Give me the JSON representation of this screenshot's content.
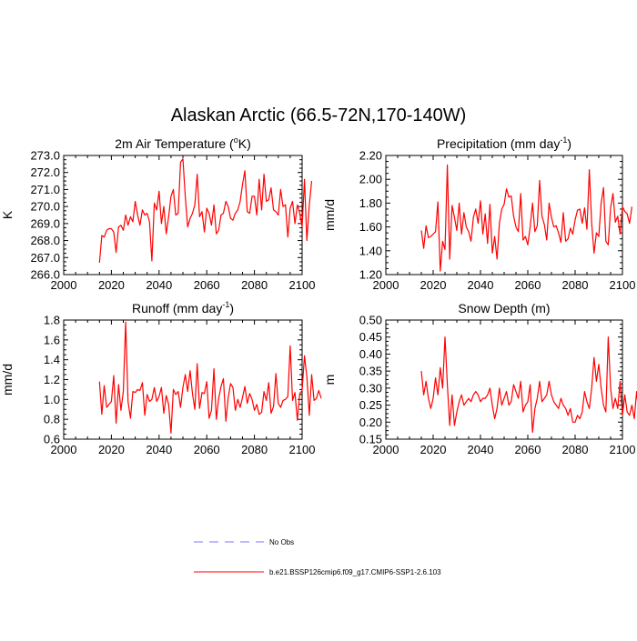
{
  "figure": {
    "title": "Alaskan Arctic (66.5-72N,170-140W)"
  },
  "legend": {
    "entries": [
      {
        "label": "No Obs",
        "color": "#7777ff",
        "style": "dashed"
      },
      {
        "label": "b.e21.BSSP126cmip6.f09_g17.CMIP6-SSP1-2.6.103",
        "color": "#ff0000",
        "style": "solid"
      }
    ]
  },
  "chart_data": [
    {
      "type": "line",
      "title": "2m Air Temperature (",
      "title_sup": "o",
      "title_tail": "K)",
      "ylabel": "K",
      "xlim": [
        2000,
        2100
      ],
      "ylim": [
        266,
        273
      ],
      "xticks": [
        2000,
        2020,
        2040,
        2060,
        2080,
        2100
      ],
      "yticks": [
        "266.0",
        "267.0",
        "268.0",
        "269.0",
        "270.0",
        "271.0",
        "272.0",
        "273.0"
      ],
      "series": [
        {
          "name": "b.e21.BSSP126cmip6.f09_g17.CMIP6-SSP1-2.6.103",
          "color": "#ff0000",
          "x_start": 2015,
          "values": [
            266.7,
            268.3,
            268.2,
            268.6,
            268.7,
            268.7,
            268.5,
            267.3,
            268.8,
            268.9,
            268.6,
            269.5,
            268.9,
            269.4,
            269.1,
            270.3,
            269.5,
            268.9,
            269.8,
            269.5,
            269.6,
            269.1,
            266.8,
            270.2,
            269.8,
            270.9,
            269.0,
            270.0,
            268.4,
            269.4,
            270.6,
            271.0,
            269.5,
            269.6,
            272.6,
            272.8,
            270.6,
            268.8,
            269.3,
            269.6,
            270.1,
            271.9,
            269.4,
            269.7,
            268.5,
            269.9,
            269.6,
            268.9,
            270.1,
            268.4,
            268.6,
            269.5,
            269.6,
            270.3,
            270.0,
            269.3,
            269.2,
            269.6,
            269.8,
            270.3,
            271.3,
            272.1,
            269.7,
            269.6,
            270.6,
            270.6,
            269.5,
            271.6,
            269.8,
            271.9,
            270.3,
            270.4,
            271.1,
            269.8,
            269.7,
            269.5,
            271.0,
            270.0,
            270.1,
            268.2,
            269.9,
            270.3,
            269.0,
            270.1,
            269.6,
            268.8,
            271.6,
            268.0,
            270.1,
            271.5
          ]
        }
      ]
    },
    {
      "type": "line",
      "title": "Precipitation (mm day",
      "title_sup": "-1",
      "title_tail": ")",
      "ylabel": "mm/d",
      "xlim": [
        2000,
        2100
      ],
      "ylim": [
        1.2,
        2.2
      ],
      "xticks": [
        2000,
        2020,
        2040,
        2060,
        2080,
        2100
      ],
      "yticks": [
        "1.20",
        "1.40",
        "1.60",
        "1.80",
        "2.00",
        "2.20"
      ],
      "series": [
        {
          "name": "b.e21.BSSP126cmip6.f09_g17.CMIP6-SSP1-2.6.103",
          "color": "#ff0000",
          "x_start": 2015,
          "values": [
            1.57,
            1.42,
            1.61,
            1.51,
            1.52,
            1.54,
            1.56,
            1.81,
            1.23,
            1.48,
            1.41,
            2.12,
            1.33,
            1.78,
            1.68,
            1.57,
            1.8,
            1.54,
            1.72,
            1.6,
            1.56,
            1.48,
            1.68,
            1.75,
            1.63,
            1.82,
            1.54,
            1.71,
            1.46,
            1.79,
            1.38,
            1.52,
            1.33,
            1.63,
            1.75,
            1.79,
            1.92,
            1.85,
            1.86,
            1.69,
            1.6,
            1.56,
            1.88,
            1.49,
            1.52,
            1.45,
            1.6,
            1.8,
            1.56,
            1.61,
            1.99,
            1.69,
            1.62,
            1.49,
            1.8,
            1.68,
            1.6,
            1.61,
            1.55,
            1.47,
            1.72,
            1.48,
            1.5,
            1.59,
            1.54,
            1.66,
            1.74,
            1.75,
            1.63,
            1.76,
            1.58,
            2.08,
            1.63,
            1.38,
            1.55,
            1.52,
            1.8,
            1.93,
            1.48,
            1.45,
            1.76,
            1.88,
            1.64,
            1.69,
            1.54,
            1.77,
            1.73,
            1.71,
            1.63,
            1.77
          ]
        }
      ]
    },
    {
      "type": "line",
      "title": "Runoff (mm day",
      "title_sup": "-1",
      "title_tail": ")",
      "ylabel": "mm/d",
      "xlim": [
        2000,
        2100
      ],
      "ylim": [
        0.6,
        1.8
      ],
      "xticks": [
        2000,
        2020,
        2040,
        2060,
        2080,
        2100
      ],
      "yticks": [
        "0.6",
        "0.8",
        "1.0",
        "1.2",
        "1.4",
        "1.6",
        "1.8"
      ],
      "series": [
        {
          "name": "b.e21.BSSP126cmip6.f09_g17.CMIP6-SSP1-2.6.103",
          "color": "#ff0000",
          "x_start": 2015,
          "values": [
            1.18,
            0.85,
            1.14,
            0.92,
            0.95,
            0.98,
            1.24,
            0.76,
            1.15,
            0.89,
            1.08,
            1.78,
            0.98,
            0.81,
            1.08,
            1.07,
            1.1,
            1.09,
            1.17,
            0.84,
            1.05,
            0.98,
            1.0,
            1.12,
            0.98,
            1.03,
            1.12,
            0.86,
            1.04,
            0.95,
            0.66,
            1.1,
            1.05,
            1.08,
            0.92,
            1.12,
            1.25,
            1.08,
            1.29,
            1.06,
            0.9,
            1.36,
            0.91,
            1.07,
            1.06,
            1.18,
            0.81,
            0.89,
            1.31,
            0.8,
            1.01,
            1.13,
            1.21,
            0.78,
            1.02,
            1.16,
            1.12,
            0.89,
            1.0,
            0.92,
            1.02,
            1.13,
            0.96,
            1.06,
            1.0,
            0.89,
            0.95,
            0.85,
            0.87,
            1.08,
            0.99,
            1.17,
            0.86,
            0.93,
            1.26,
            0.96,
            0.92,
            0.99,
            1.0,
            1.03,
            1.54,
            0.99,
            1.07,
            0.79,
            1.06,
            1.09,
            1.44,
            1.23,
            0.84,
            1.25,
            0.99,
            1.01,
            1.09,
            1.01
          ]
        }
      ]
    },
    {
      "type": "line",
      "title": "Snow Depth (m)",
      "title_sup": "",
      "title_tail": "",
      "ylabel": "m",
      "xlim": [
        2000,
        2100
      ],
      "ylim": [
        0.15,
        0.5
      ],
      "xticks": [
        2000,
        2020,
        2040,
        2060,
        2080,
        2100
      ],
      "yticks": [
        "0.15",
        "0.20",
        "0.25",
        "0.30",
        "0.35",
        "0.40",
        "0.45",
        "0.50"
      ],
      "series": [
        {
          "name": "b.e21.BSSP126cmip6.f09_g17.CMIP6-SSP1-2.6.103",
          "color": "#ff0000",
          "x_start": 2015,
          "values": [
            0.35,
            0.28,
            0.32,
            0.27,
            0.24,
            0.27,
            0.33,
            0.28,
            0.36,
            0.3,
            0.45,
            0.31,
            0.19,
            0.28,
            0.19,
            0.23,
            0.26,
            0.28,
            0.25,
            0.26,
            0.27,
            0.26,
            0.28,
            0.29,
            0.28,
            0.26,
            0.27,
            0.27,
            0.28,
            0.3,
            0.25,
            0.21,
            0.24,
            0.3,
            0.25,
            0.27,
            0.29,
            0.25,
            0.26,
            0.31,
            0.29,
            0.27,
            0.32,
            0.23,
            0.25,
            0.26,
            0.31,
            0.17,
            0.24,
            0.27,
            0.32,
            0.26,
            0.27,
            0.28,
            0.32,
            0.28,
            0.26,
            0.25,
            0.24,
            0.27,
            0.25,
            0.24,
            0.22,
            0.24,
            0.2,
            0.2,
            0.22,
            0.21,
            0.23,
            0.29,
            0.26,
            0.24,
            0.3,
            0.39,
            0.32,
            0.37,
            0.3,
            0.25,
            0.23,
            0.45,
            0.3,
            0.24,
            0.27,
            0.24,
            0.32,
            0.22,
            0.28,
            0.23,
            0.22,
            0.25,
            0.21,
            0.29,
            0.22,
            0.27
          ]
        }
      ]
    }
  ]
}
